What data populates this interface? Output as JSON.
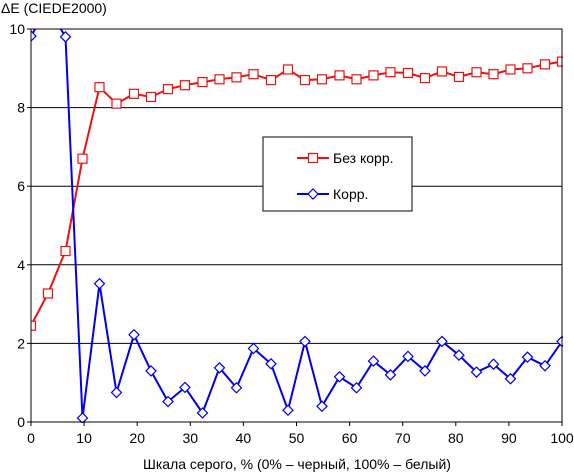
{
  "chart_data": {
    "type": "line",
    "title": "",
    "ylabel": "ΔE (CIEDE2000)",
    "xlabel": "Шкала серого, % (0% – черный, 100% – белый)",
    "xlim": [
      0,
      100
    ],
    "ylim": [
      0,
      10
    ],
    "x_ticks": [
      "0",
      "10",
      "20",
      "30",
      "40",
      "50",
      "60",
      "70",
      "80",
      "90",
      "100"
    ],
    "y_ticks": [
      "0",
      "2",
      "4",
      "6",
      "8",
      "10"
    ],
    "grid": "horizontal",
    "legend_position": "center-right",
    "series": [
      {
        "name": "Без корр.",
        "color": "#ee1111",
        "marker": "square",
        "x": [
          0,
          3.2,
          6.5,
          9.7,
          12.9,
          16.1,
          19.4,
          22.6,
          25.8,
          29.0,
          32.3,
          35.5,
          38.7,
          41.9,
          45.2,
          48.4,
          51.6,
          54.8,
          58.1,
          61.3,
          64.5,
          67.7,
          71.0,
          74.2,
          77.4,
          80.6,
          83.9,
          87.1,
          90.3,
          93.5,
          96.8,
          100
        ],
        "values": [
          2.45,
          3.27,
          4.35,
          6.7,
          8.52,
          8.1,
          8.35,
          8.27,
          8.47,
          8.57,
          8.65,
          8.72,
          8.77,
          8.85,
          8.7,
          8.97,
          8.7,
          8.72,
          8.82,
          8.72,
          8.82,
          8.9,
          8.88,
          8.75,
          8.92,
          8.78,
          8.9,
          8.85,
          8.97,
          9.0,
          9.1,
          9.17
        ]
      },
      {
        "name": "Корр.",
        "color": "#0000ee",
        "marker": "diamond",
        "x": [
          0,
          3.2,
          6.5,
          9.7,
          12.9,
          16.1,
          19.4,
          22.6,
          25.8,
          29.0,
          32.3,
          35.5,
          38.7,
          41.9,
          45.2,
          48.4,
          51.6,
          54.8,
          58.1,
          61.3,
          64.5,
          67.7,
          71.0,
          74.2,
          77.4,
          80.6,
          83.9,
          87.1,
          90.3,
          93.5,
          96.8,
          100
        ],
        "values": [
          9.82,
          10.55,
          9.8,
          0.1,
          3.52,
          0.75,
          2.22,
          1.3,
          0.52,
          0.88,
          0.23,
          1.38,
          0.87,
          1.87,
          1.48,
          0.3,
          2.05,
          0.4,
          1.15,
          0.87,
          1.55,
          1.2,
          1.67,
          1.3,
          2.05,
          1.7,
          1.27,
          1.47,
          1.1,
          1.65,
          1.43,
          2.05
        ]
      }
    ]
  }
}
